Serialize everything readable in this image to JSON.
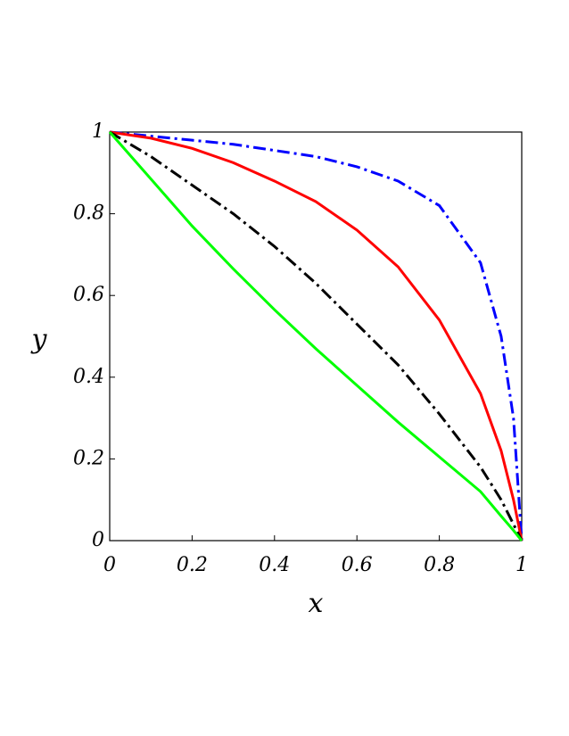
{
  "chart_data": {
    "type": "line",
    "x_label": "x",
    "y_label": "y",
    "x": [
      0,
      0.1,
      0.2,
      0.3,
      0.4,
      0.5,
      0.6,
      0.7,
      0.8,
      0.9,
      0.95,
      0.98,
      1
    ],
    "series": [
      {
        "color": "#0000ff",
        "style": "dashdot",
        "values": [
          1,
          0.99,
          0.98,
          0.97,
          0.955,
          0.94,
          0.915,
          0.88,
          0.82,
          0.68,
          0.5,
          0.3,
          0
        ]
      },
      {
        "color": "#ff0000",
        "style": "solid",
        "values": [
          1,
          0.985,
          0.96,
          0.925,
          0.88,
          0.83,
          0.76,
          0.67,
          0.54,
          0.36,
          0.22,
          0.1,
          0
        ]
      },
      {
        "color": "#000000",
        "style": "dashdot",
        "values": [
          1,
          0.94,
          0.87,
          0.8,
          0.72,
          0.63,
          0.53,
          0.43,
          0.31,
          0.18,
          0.1,
          0.04,
          0
        ]
      },
      {
        "color": "#00ff00",
        "style": "solid",
        "values": [
          1,
          0.885,
          0.77,
          0.665,
          0.565,
          0.47,
          0.38,
          0.29,
          0.205,
          0.12,
          0.06,
          0.025,
          0
        ]
      }
    ],
    "xlim": [
      0,
      1
    ],
    "ylim": [
      0,
      1
    ],
    "xticks": [
      0,
      0.2,
      0.4,
      0.6,
      0.8,
      1
    ],
    "yticks": [
      0,
      0.2,
      0.4,
      0.6,
      0.8,
      1
    ],
    "grid": false
  }
}
